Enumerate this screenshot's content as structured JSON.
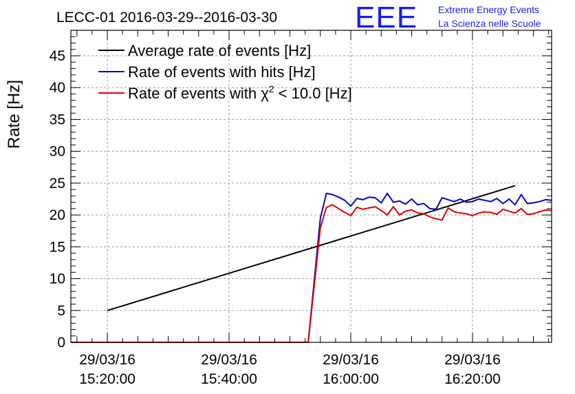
{
  "logo": {
    "mark": "EEE",
    "line1": "Extreme Energy Events",
    "line2": "La Scienza nelle Scuole",
    "color": "#1a1aff"
  },
  "chart_data": {
    "type": "line",
    "title": "LECC-01 2016-03-29--2016-03-30",
    "xlabel": "",
    "ylabel": "Rate [Hz]",
    "ylim": [
      0,
      49
    ],
    "xlim_minutes_after_15_20": [
      -6,
      73
    ],
    "grid": true,
    "legend_placement": "top-left",
    "x_ticks": [
      {
        "date": "29/03/16",
        "time": "15:20:00",
        "minutes": 0
      },
      {
        "date": "29/03/16",
        "time": "15:40:00",
        "minutes": 20
      },
      {
        "date": "29/03/16",
        "time": "16:00:00",
        "minutes": 40
      },
      {
        "date": "29/03/16",
        "time": "16:20:00",
        "minutes": 60
      }
    ],
    "y_ticks": [
      0,
      5,
      10,
      15,
      20,
      25,
      30,
      35,
      40,
      45
    ],
    "series": [
      {
        "name": "Average rate of events [Hz]",
        "color": "#000000",
        "x": [
          0,
          67
        ],
        "y": [
          5.0,
          24.6
        ]
      },
      {
        "name": "Rate of events with hits [Hz]",
        "color": "#0000cc",
        "x": [
          -6,
          33,
          35,
          36,
          37,
          38,
          39,
          40,
          41,
          42,
          43,
          44,
          45,
          46,
          47,
          48,
          49,
          50,
          51,
          52,
          53,
          54,
          55,
          56,
          57,
          58,
          59,
          60,
          61,
          62,
          63,
          64,
          65,
          66,
          67,
          68,
          69,
          70,
          71,
          72,
          73
        ],
        "y": [
          0,
          0,
          19.5,
          23.4,
          23.2,
          22.8,
          22.3,
          21.4,
          22.6,
          22.4,
          22.8,
          22.7,
          21.9,
          23.4,
          22.0,
          22.2,
          21.7,
          22.5,
          21.6,
          21.8,
          21.0,
          20.9,
          22.7,
          22.4,
          22.1,
          22.5,
          22.0,
          22.1,
          22.5,
          22.3,
          22.1,
          22.6,
          21.8,
          22.5,
          21.6,
          23.2,
          21.8,
          21.9,
          22.1,
          22.4,
          22.3
        ]
      },
      {
        "name": "Rate of events with χ2 < 10.0 [Hz]",
        "color": "#e00000",
        "x": [
          -6,
          33,
          35,
          36,
          37,
          38,
          39,
          40,
          41,
          42,
          43,
          44,
          45,
          46,
          47,
          48,
          49,
          50,
          51,
          52,
          53,
          54,
          55,
          56,
          57,
          58,
          59,
          60,
          61,
          62,
          63,
          64,
          65,
          66,
          67,
          68,
          69,
          70,
          71,
          72,
          73
        ],
        "y": [
          0,
          0,
          18.0,
          21.2,
          21.6,
          21.0,
          20.4,
          19.9,
          21.2,
          20.9,
          21.1,
          21.3,
          20.7,
          20.0,
          21.3,
          20.0,
          20.6,
          20.8,
          20.3,
          20.2,
          19.7,
          19.4,
          19.2,
          21.1,
          20.5,
          20.3,
          20.2,
          19.9,
          20.3,
          20.5,
          20.4,
          20.1,
          20.9,
          20.6,
          20.3,
          21.0,
          20.1,
          20.2,
          20.5,
          20.8,
          20.7
        ]
      }
    ]
  }
}
